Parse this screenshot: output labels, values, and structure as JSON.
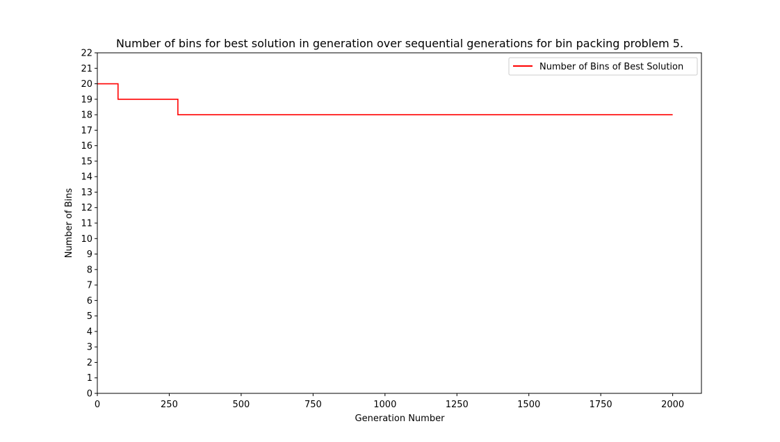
{
  "chart_data": {
    "type": "line",
    "title": "Number of bins for best solution in generation over sequential generations for bin packing problem 5.",
    "xlabel": "Generation Number",
    "ylabel": "Number of Bins",
    "xlim": [
      0,
      2100
    ],
    "ylim": [
      0,
      22
    ],
    "xticks": [
      0,
      250,
      500,
      750,
      1000,
      1250,
      1500,
      1750,
      2000
    ],
    "yticks": [
      0,
      1,
      2,
      3,
      4,
      5,
      6,
      7,
      8,
      9,
      10,
      11,
      12,
      13,
      14,
      15,
      16,
      17,
      18,
      19,
      20,
      21,
      22
    ],
    "grid": false,
    "legend_position": "top-right",
    "series": [
      {
        "name": "Number of Bins of Best Solution",
        "color": "#ff0000",
        "step_points": [
          {
            "x": 0,
            "y": 20
          },
          {
            "x": 72,
            "y": 20
          },
          {
            "x": 72,
            "y": 19
          },
          {
            "x": 280,
            "y": 19
          },
          {
            "x": 280,
            "y": 18
          },
          {
            "x": 2000,
            "y": 18
          }
        ]
      }
    ]
  }
}
